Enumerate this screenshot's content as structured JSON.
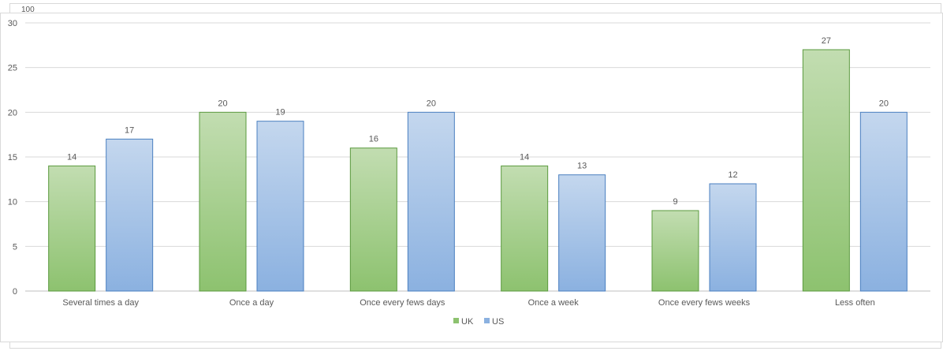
{
  "behind_chart": {
    "partial_label": "100"
  },
  "chart_data": {
    "type": "bar",
    "categories": [
      "Several times a day",
      "Once a day",
      "Once every fews days",
      "Once a week",
      "Once every fews weeks",
      "Less often"
    ],
    "series": [
      {
        "name": "UK",
        "values": [
          14,
          20,
          16,
          14,
          9,
          27
        ],
        "color": "#8dc26f",
        "gradient_top": "#c2ddb1"
      },
      {
        "name": "US",
        "values": [
          17,
          19,
          20,
          13,
          12,
          20
        ],
        "color": "#8bb1e0",
        "gradient_top": "#c4d7ee"
      }
    ],
    "ylim": [
      0,
      30
    ],
    "yticks": [
      0,
      5,
      10,
      15,
      20,
      25,
      30
    ],
    "xlabel": "",
    "ylabel": "",
    "grid": true,
    "legend_position": "bottom",
    "data_labels": true
  }
}
